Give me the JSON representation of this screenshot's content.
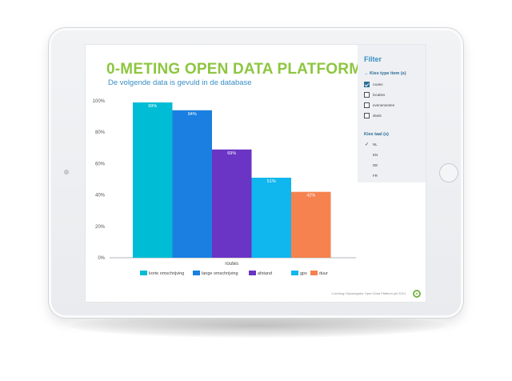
{
  "screen": {
    "title": "0-METING OPEN DATA PLATFORM",
    "subtitle": "De volgende data is gevuld in de database",
    "footer": "0-meting Citynavigator Open Data Platform juli 2014"
  },
  "filter": {
    "title": "Filter",
    "type_heading": "→ Kies type item (s)",
    "type_options": [
      {
        "label": "routes",
        "checked": true
      },
      {
        "label": "locaties",
        "checked": false
      },
      {
        "label": "evenementen",
        "checked": false
      },
      {
        "label": "deals",
        "checked": false
      }
    ],
    "lang_heading": "Kies taal (s)",
    "lang_options": [
      {
        "label": "NL",
        "checked": true
      },
      {
        "label": "EN",
        "checked": false
      },
      {
        "label": "DE",
        "checked": false
      },
      {
        "label": "FR",
        "checked": false
      }
    ]
  },
  "chart_data": {
    "type": "bar",
    "xlabel": "routes",
    "ylim": [
      0,
      100
    ],
    "yticks": [
      "0%",
      "20%",
      "40%",
      "60%",
      "80%",
      "100%"
    ],
    "series": [
      {
        "name": "korte omschrijving",
        "value": 99,
        "label": "99%",
        "color": "#00bcd4"
      },
      {
        "name": "lange omschrijving",
        "value": 94,
        "label": "94%",
        "color": "#1a7fe0"
      },
      {
        "name": "afstand",
        "value": 69,
        "label": "69%",
        "color": "#6a35c4"
      },
      {
        "name": "gpx",
        "value": 51,
        "label": "51%",
        "color": "#10b6ee"
      },
      {
        "name": "duur",
        "value": 42,
        "label": "42%",
        "color": "#f5824f"
      }
    ],
    "grid": false,
    "legend_position": "bottom"
  }
}
